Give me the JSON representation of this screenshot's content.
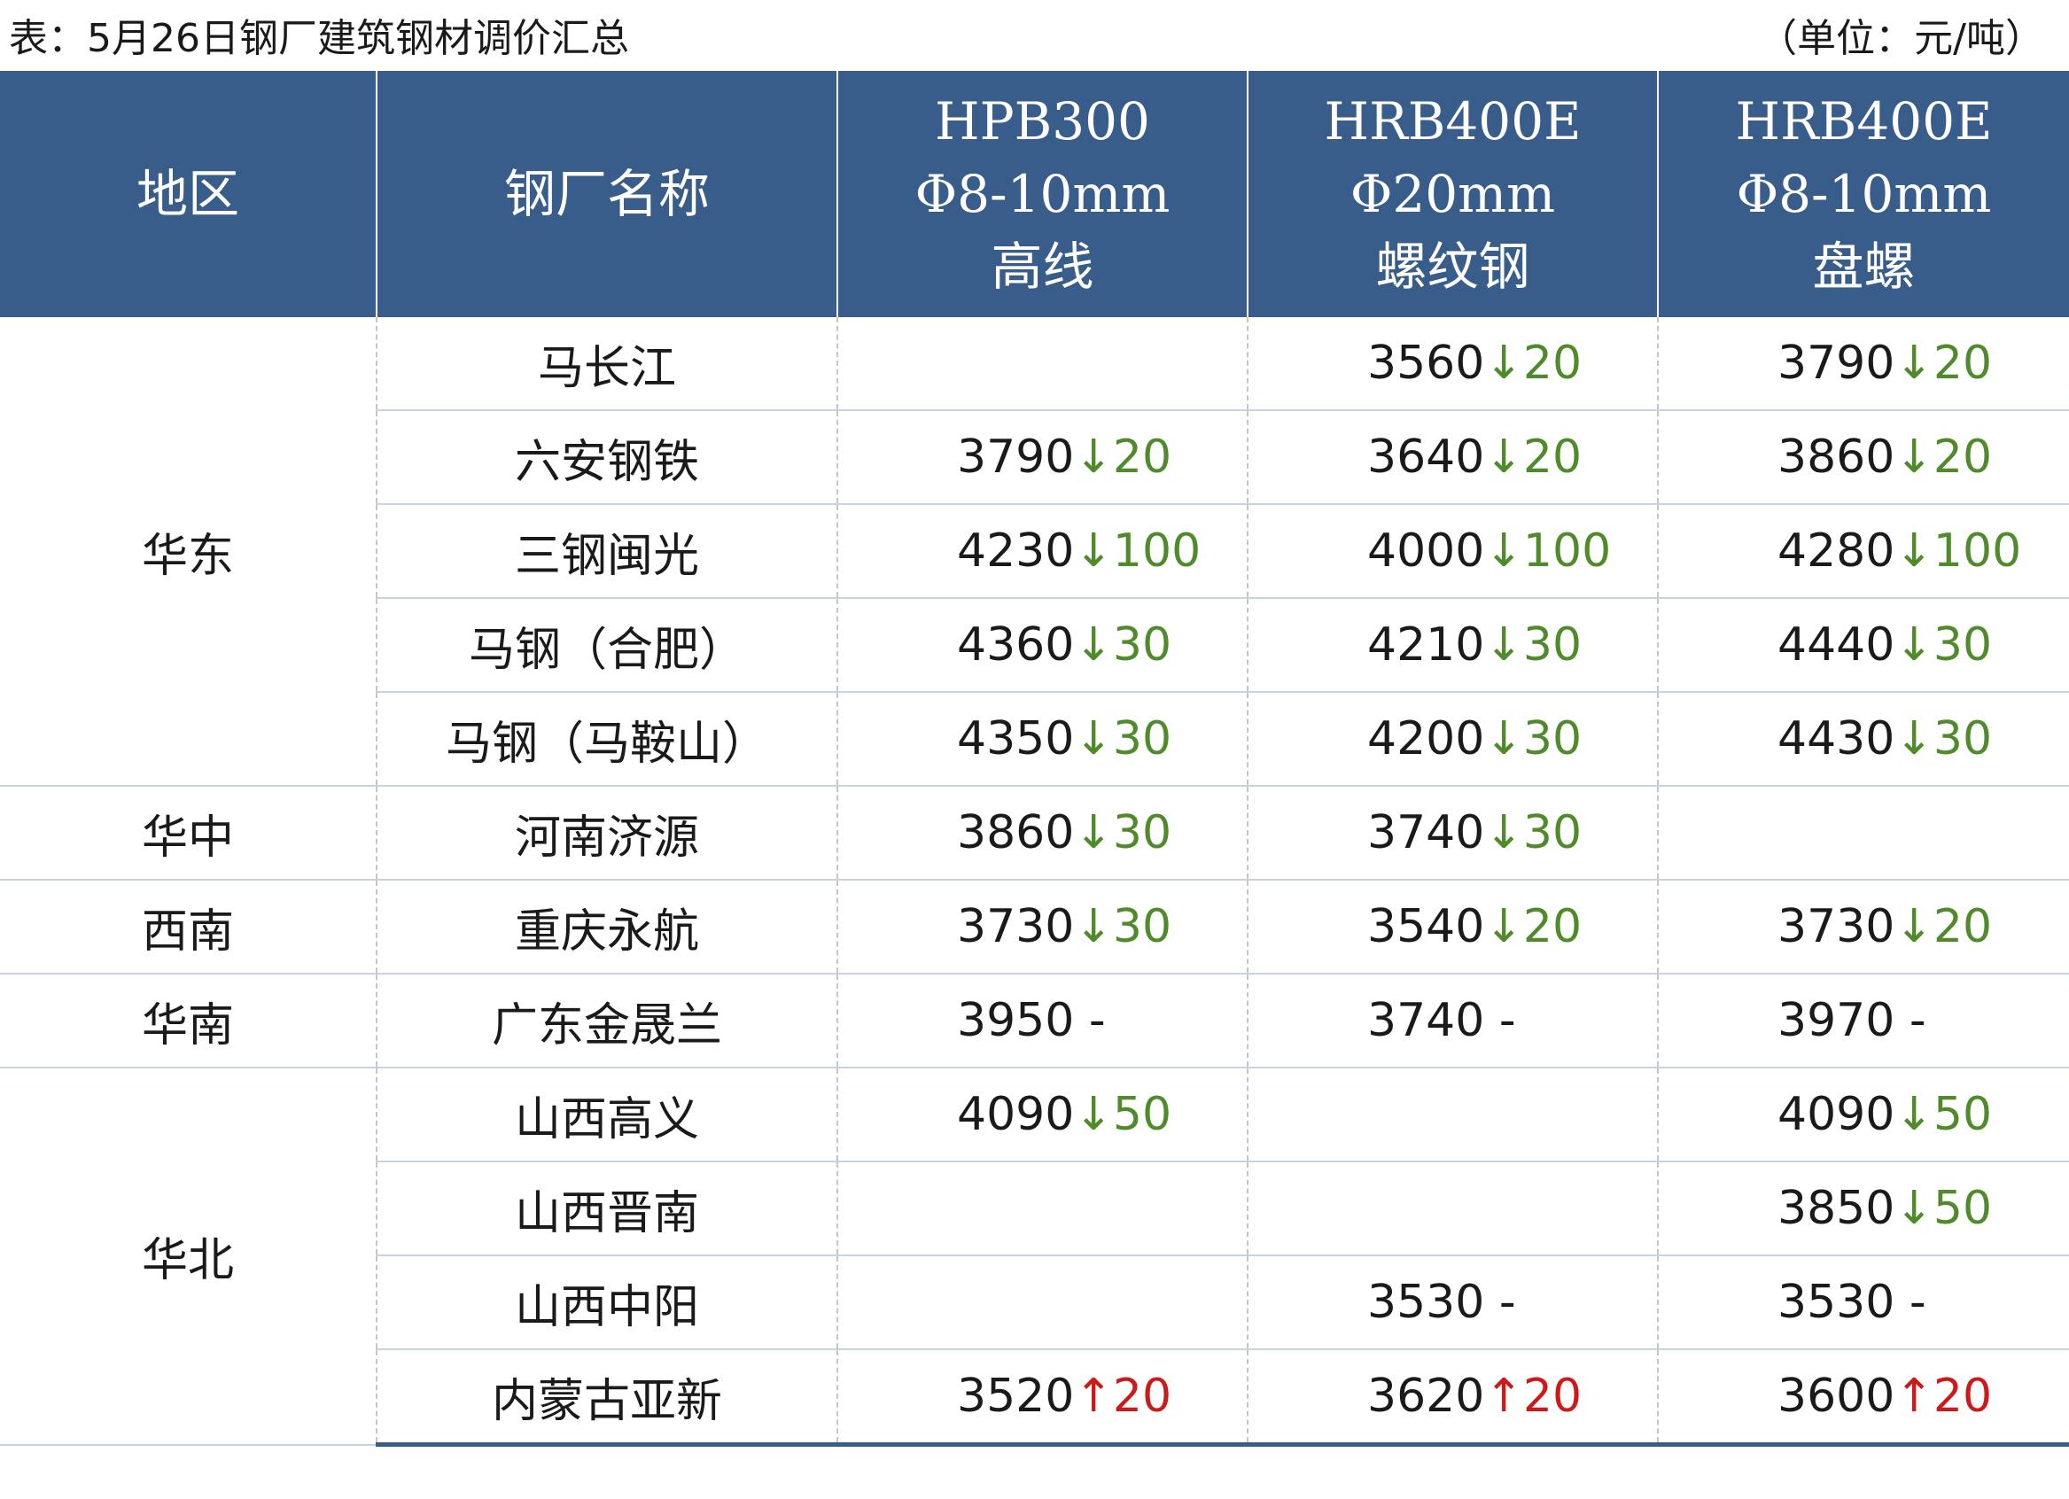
{
  "caption": "表：5月26日钢厂建筑钢材调价汇总",
  "unit": "（单位：元/吨）",
  "headers": {
    "region": "地区",
    "mill": "钢厂名称",
    "col1": [
      "HPB300",
      "Φ8-10mm",
      "高线"
    ],
    "col2": [
      "HRB400E",
      "Φ20mm",
      "螺纹钢"
    ],
    "col3": [
      "HRB400E",
      "Φ8-10mm",
      "盘螺"
    ]
  },
  "colors": {
    "header_bg": "#385d8a",
    "down": "#4f8a2b",
    "up": "#cc1a1a"
  },
  "rows": [
    {
      "region": "华东",
      "region_rowspan": 5,
      "mill": "马长江",
      "p": [
        null,
        {
          "price": "3560",
          "arrow": "↓",
          "delta": "20",
          "dir": "down"
        },
        {
          "price": "3790",
          "arrow": "↓",
          "delta": "20",
          "dir": "down"
        }
      ]
    },
    {
      "mill": "六安钢铁",
      "p": [
        {
          "price": "3790",
          "arrow": "↓",
          "delta": "20",
          "dir": "down"
        },
        {
          "price": "3640",
          "arrow": "↓",
          "delta": "20",
          "dir": "down"
        },
        {
          "price": "3860",
          "arrow": "↓",
          "delta": "20",
          "dir": "down"
        }
      ]
    },
    {
      "mill": "三钢闽光",
      "p": [
        {
          "price": "4230",
          "arrow": "↓",
          "delta": "100",
          "dir": "down"
        },
        {
          "price": "4000",
          "arrow": "↓",
          "delta": "100",
          "dir": "down"
        },
        {
          "price": "4280",
          "arrow": "↓",
          "delta": "100",
          "dir": "down"
        }
      ]
    },
    {
      "mill": "马钢（合肥）",
      "p": [
        {
          "price": "4360",
          "arrow": "↓",
          "delta": "30",
          "dir": "down"
        },
        {
          "price": "4210",
          "arrow": "↓",
          "delta": "30",
          "dir": "down"
        },
        {
          "price": "4440",
          "arrow": "↓",
          "delta": "30",
          "dir": "down"
        }
      ]
    },
    {
      "mill": "马钢（马鞍山）",
      "p": [
        {
          "price": "4350",
          "arrow": "↓",
          "delta": "30",
          "dir": "down"
        },
        {
          "price": "4200",
          "arrow": "↓",
          "delta": "30",
          "dir": "down"
        },
        {
          "price": "4430",
          "arrow": "↓",
          "delta": "30",
          "dir": "down"
        }
      ]
    },
    {
      "region": "华中",
      "region_rowspan": 1,
      "mill": "河南济源",
      "p": [
        {
          "price": "3860",
          "arrow": "↓",
          "delta": "30",
          "dir": "down"
        },
        {
          "price": "3740",
          "arrow": "↓",
          "delta": "30",
          "dir": "down"
        },
        null
      ]
    },
    {
      "region": "西南",
      "region_rowspan": 1,
      "mill": "重庆永航",
      "p": [
        {
          "price": "3730",
          "arrow": "↓",
          "delta": "30",
          "dir": "down"
        },
        {
          "price": "3540",
          "arrow": "↓",
          "delta": "20",
          "dir": "down"
        },
        {
          "price": "3730",
          "arrow": "↓",
          "delta": "20",
          "dir": "down"
        }
      ]
    },
    {
      "region": "华南",
      "region_rowspan": 1,
      "mill": "广东金晟兰",
      "p": [
        {
          "price": "3950",
          "arrow": "",
          "delta": " -",
          "dir": "flat"
        },
        {
          "price": "3740",
          "arrow": "",
          "delta": " -",
          "dir": "flat"
        },
        {
          "price": "3970",
          "arrow": "",
          "delta": " -",
          "dir": "flat"
        }
      ]
    },
    {
      "region": "华北",
      "region_rowspan": 4,
      "mill": "山西高义",
      "p": [
        {
          "price": "4090",
          "arrow": "↓",
          "delta": "50",
          "dir": "down"
        },
        null,
        {
          "price": "4090",
          "arrow": "↓",
          "delta": "50",
          "dir": "down"
        }
      ]
    },
    {
      "mill": "山西晋南",
      "p": [
        null,
        null,
        {
          "price": "3850",
          "arrow": "↓",
          "delta": "50",
          "dir": "down"
        }
      ]
    },
    {
      "mill": "山西中阳",
      "p": [
        null,
        {
          "price": "3530",
          "arrow": "",
          "delta": " -",
          "dir": "flat"
        },
        {
          "price": "3530",
          "arrow": "",
          "delta": " -",
          "dir": "flat"
        }
      ]
    },
    {
      "mill": "内蒙古亚新",
      "p": [
        {
          "price": "3520",
          "arrow": "↑",
          "delta": "20",
          "dir": "up"
        },
        {
          "price": "3620",
          "arrow": "↑",
          "delta": "20",
          "dir": "up"
        },
        {
          "price": "3600",
          "arrow": "↑",
          "delta": "20",
          "dir": "up"
        }
      ]
    }
  ]
}
